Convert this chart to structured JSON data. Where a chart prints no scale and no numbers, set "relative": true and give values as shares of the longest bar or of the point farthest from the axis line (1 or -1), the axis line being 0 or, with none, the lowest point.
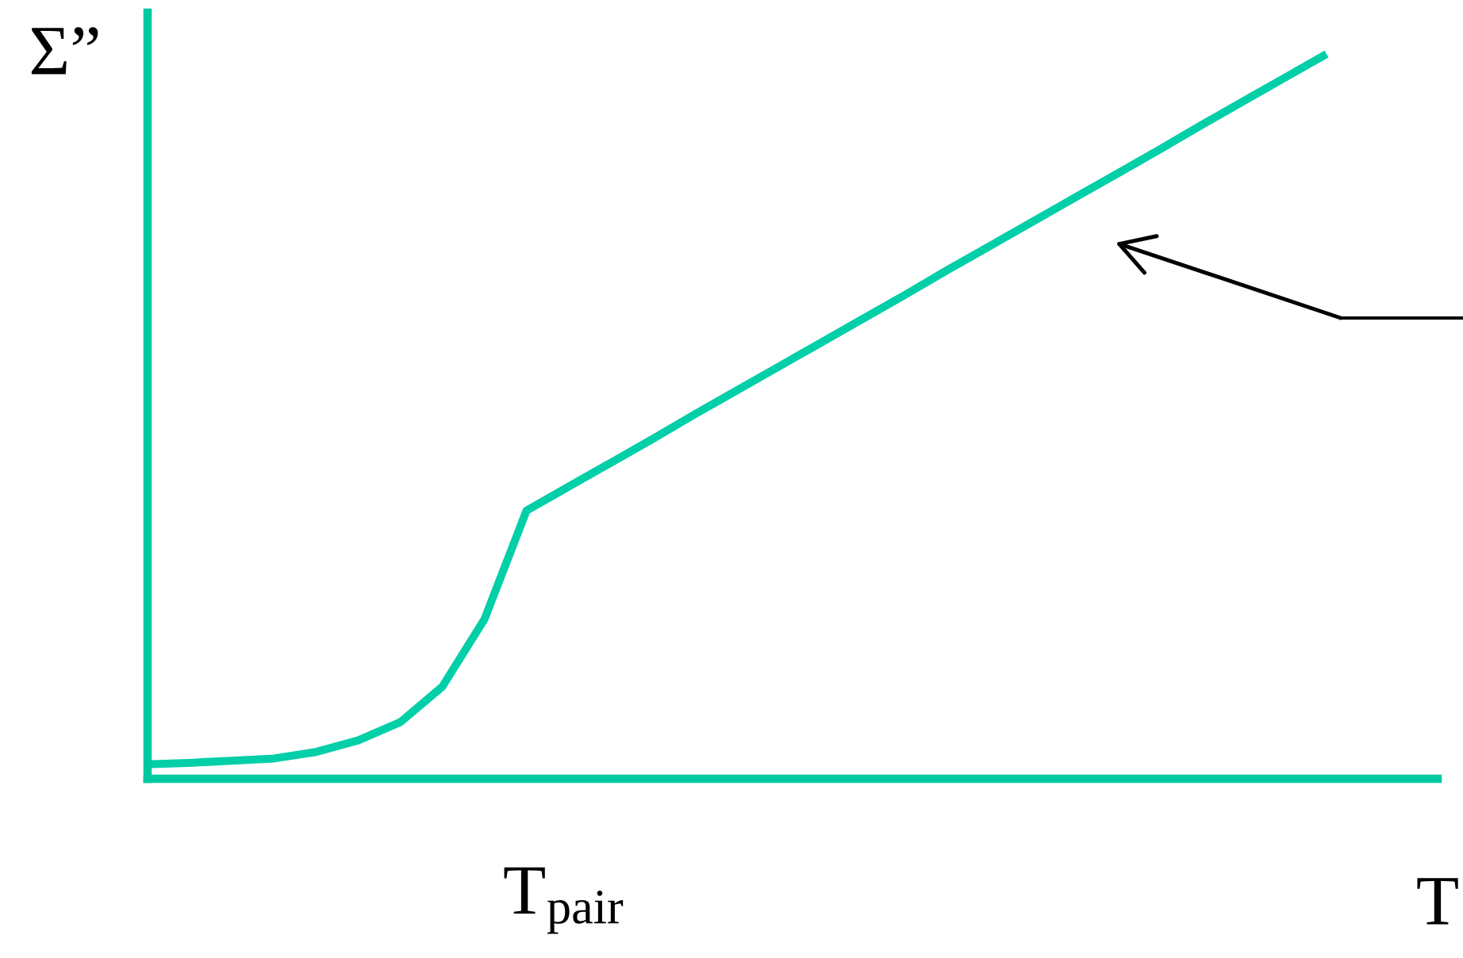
{
  "chart_data": {
    "type": "line",
    "relative": true,
    "ylabel": "Σ”",
    "xlabel": "T",
    "categories": [
      null,
      null,
      null,
      null,
      null,
      null,
      null,
      null,
      null,
      null,
      null,
      null,
      null,
      null,
      null,
      null,
      null,
      null,
      null,
      null,
      null,
      null,
      null,
      null,
      null,
      null,
      null,
      null,
      null
    ],
    "values": [
      0.02,
      0.022,
      0.025,
      0.028,
      0.037,
      0.053,
      0.078,
      0.127,
      0.22,
      0.37,
      0.403,
      0.436,
      0.469,
      0.503,
      0.536,
      0.569,
      0.602,
      0.635,
      0.668,
      0.702,
      0.735,
      0.768,
      0.801,
      0.834,
      0.867,
      0.901,
      0.934,
      0.967,
      1
    ],
    "color": "#00cfa8",
    "annotations": [
      "T$_{pair}$"
    ]
  }
}
